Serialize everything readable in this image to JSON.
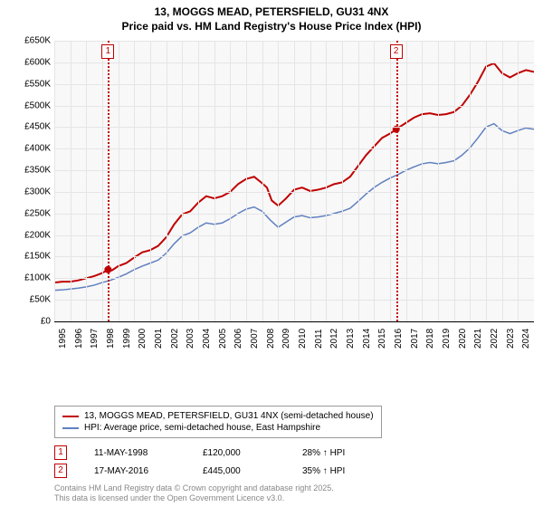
{
  "title": {
    "line1": "13, MOGGS MEAD, PETERSFIELD, GU31 4NX",
    "line2": "Price paid vs. HM Land Registry's House Price Index (HPI)",
    "fontsize": 12,
    "color": "#000000"
  },
  "chart": {
    "type": "line",
    "background_color": "#f8f8f8",
    "grid_color": "#e5e5e5",
    "axis_color": "#000000",
    "xlim": [
      1995,
      2025
    ],
    "ylim": [
      0,
      650000
    ],
    "ytick_step": 50000,
    "yticks": [
      "£0",
      "£50K",
      "£100K",
      "£150K",
      "£200K",
      "£250K",
      "£300K",
      "£350K",
      "£400K",
      "£450K",
      "£500K",
      "£550K",
      "£600K",
      "£650K"
    ],
    "xticks": [
      "1995",
      "1996",
      "1997",
      "1998",
      "1999",
      "2000",
      "2001",
      "2002",
      "2003",
      "2004",
      "2005",
      "2006",
      "2007",
      "2008",
      "2009",
      "2010",
      "2011",
      "2012",
      "2013",
      "2014",
      "2015",
      "2016",
      "2017",
      "2018",
      "2019",
      "2020",
      "2021",
      "2022",
      "2023",
      "2024"
    ],
    "label_fontsize": 10,
    "series": [
      {
        "name": "13, MOGGS MEAD, PETERSFIELD, GU31 4NX (semi-detached house)",
        "color": "#c00000",
        "line_width": 2,
        "data": [
          [
            1995,
            90000
          ],
          [
            1995.5,
            92000
          ],
          [
            1996,
            92000
          ],
          [
            1996.5,
            95000
          ],
          [
            1997,
            100000
          ],
          [
            1997.5,
            105000
          ],
          [
            1998,
            112000
          ],
          [
            1998.36,
            120000
          ],
          [
            1998.6,
            118000
          ],
          [
            1999,
            128000
          ],
          [
            1999.5,
            135000
          ],
          [
            2000,
            148000
          ],
          [
            2000.5,
            160000
          ],
          [
            2001,
            165000
          ],
          [
            2001.5,
            175000
          ],
          [
            2002,
            195000
          ],
          [
            2002.5,
            225000
          ],
          [
            2003,
            248000
          ],
          [
            2003.5,
            255000
          ],
          [
            2004,
            275000
          ],
          [
            2004.5,
            290000
          ],
          [
            2005,
            285000
          ],
          [
            2005.5,
            290000
          ],
          [
            2006,
            300000
          ],
          [
            2006.5,
            318000
          ],
          [
            2007,
            330000
          ],
          [
            2007.5,
            335000
          ],
          [
            2008,
            320000
          ],
          [
            2008.3,
            310000
          ],
          [
            2008.6,
            280000
          ],
          [
            2009,
            268000
          ],
          [
            2009.5,
            285000
          ],
          [
            2010,
            305000
          ],
          [
            2010.5,
            310000
          ],
          [
            2011,
            302000
          ],
          [
            2011.5,
            305000
          ],
          [
            2012,
            310000
          ],
          [
            2012.5,
            318000
          ],
          [
            2013,
            322000
          ],
          [
            2013.5,
            335000
          ],
          [
            2014,
            360000
          ],
          [
            2014.5,
            385000
          ],
          [
            2015,
            405000
          ],
          [
            2015.5,
            425000
          ],
          [
            2016,
            435000
          ],
          [
            2016.38,
            445000
          ],
          [
            2016.5,
            448000
          ],
          [
            2017,
            460000
          ],
          [
            2017.5,
            472000
          ],
          [
            2018,
            480000
          ],
          [
            2018.5,
            482000
          ],
          [
            2019,
            478000
          ],
          [
            2019.5,
            480000
          ],
          [
            2020,
            485000
          ],
          [
            2020.5,
            500000
          ],
          [
            2021,
            525000
          ],
          [
            2021.5,
            555000
          ],
          [
            2022,
            590000
          ],
          [
            2022.5,
            598000
          ],
          [
            2023,
            575000
          ],
          [
            2023.5,
            565000
          ],
          [
            2024,
            575000
          ],
          [
            2024.5,
            582000
          ],
          [
            2025,
            578000
          ]
        ]
      },
      {
        "name": "HPI: Average price, semi-detached house, East Hampshire",
        "color": "#6080c0",
        "line_width": 1.5,
        "data": [
          [
            1995,
            72000
          ],
          [
            1995.5,
            73000
          ],
          [
            1996,
            75000
          ],
          [
            1996.5,
            77000
          ],
          [
            1997,
            80000
          ],
          [
            1997.5,
            84000
          ],
          [
            1998,
            90000
          ],
          [
            1998.5,
            95000
          ],
          [
            1999,
            102000
          ],
          [
            1999.5,
            110000
          ],
          [
            2000,
            120000
          ],
          [
            2000.5,
            128000
          ],
          [
            2001,
            135000
          ],
          [
            2001.5,
            142000
          ],
          [
            2002,
            158000
          ],
          [
            2002.5,
            180000
          ],
          [
            2003,
            198000
          ],
          [
            2003.5,
            205000
          ],
          [
            2004,
            218000
          ],
          [
            2004.5,
            228000
          ],
          [
            2005,
            225000
          ],
          [
            2005.5,
            228000
          ],
          [
            2006,
            238000
          ],
          [
            2006.5,
            250000
          ],
          [
            2007,
            260000
          ],
          [
            2007.5,
            265000
          ],
          [
            2008,
            255000
          ],
          [
            2008.5,
            235000
          ],
          [
            2009,
            218000
          ],
          [
            2009.5,
            230000
          ],
          [
            2010,
            242000
          ],
          [
            2010.5,
            245000
          ],
          [
            2011,
            240000
          ],
          [
            2011.5,
            242000
          ],
          [
            2012,
            245000
          ],
          [
            2012.5,
            250000
          ],
          [
            2013,
            255000
          ],
          [
            2013.5,
            262000
          ],
          [
            2014,
            278000
          ],
          [
            2014.5,
            295000
          ],
          [
            2015,
            310000
          ],
          [
            2015.5,
            322000
          ],
          [
            2016,
            332000
          ],
          [
            2016.5,
            340000
          ],
          [
            2017,
            350000
          ],
          [
            2017.5,
            358000
          ],
          [
            2018,
            365000
          ],
          [
            2018.5,
            368000
          ],
          [
            2019,
            365000
          ],
          [
            2019.5,
            368000
          ],
          [
            2020,
            372000
          ],
          [
            2020.5,
            385000
          ],
          [
            2021,
            402000
          ],
          [
            2021.5,
            425000
          ],
          [
            2022,
            450000
          ],
          [
            2022.5,
            458000
          ],
          [
            2023,
            442000
          ],
          [
            2023.5,
            435000
          ],
          [
            2024,
            442000
          ],
          [
            2024.5,
            448000
          ],
          [
            2025,
            445000
          ]
        ]
      }
    ],
    "sale_markers": [
      {
        "n": "1",
        "x": 1998.36,
        "y": 120000
      },
      {
        "n": "2",
        "x": 2016.38,
        "y": 445000
      }
    ],
    "sale_line_color": "#c00000"
  },
  "legend": {
    "border_color": "#999999",
    "items": [
      {
        "color": "#c00000",
        "label": "13, MOGGS MEAD, PETERSFIELD, GU31 4NX (semi-detached house)"
      },
      {
        "color": "#6080c0",
        "label": "HPI: Average price, semi-detached house, East Hampshire"
      }
    ]
  },
  "sales": [
    {
      "n": "1",
      "date": "11-MAY-1998",
      "price": "£120,000",
      "hpi": "28% ↑ HPI"
    },
    {
      "n": "2",
      "date": "17-MAY-2016",
      "price": "£445,000",
      "hpi": "35% ↑ HPI"
    }
  ],
  "footer": {
    "line1": "Contains HM Land Registry data © Crown copyright and database right 2025.",
    "line2": "This data is licensed under the Open Government Licence v3.0.",
    "color": "#888888"
  }
}
